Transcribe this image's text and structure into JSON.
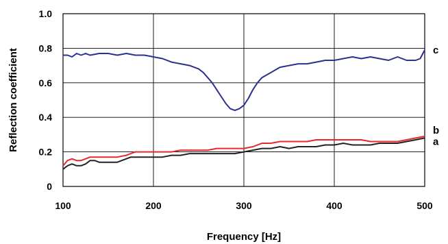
{
  "chart_data": {
    "type": "line",
    "xlabel": "Frequency [Hz]",
    "ylabel": "Reflection coefficient",
    "xlim": [
      100,
      500
    ],
    "ylim": [
      0,
      1.0
    ],
    "x_ticks": [
      100,
      200,
      300,
      400,
      500
    ],
    "x_tick_labels": [
      "100",
      "200",
      "300",
      "400",
      "500"
    ],
    "y_ticks": [
      0,
      0.2,
      0.4,
      0.6,
      0.8,
      1.0
    ],
    "y_tick_labels": [
      "0",
      "0.2",
      "0.4",
      "0.6",
      "0.8",
      "1.0"
    ],
    "grid": true,
    "legend": "labels at right end of lines",
    "series": [
      {
        "name": "a",
        "color": "#222222",
        "x": [
          100,
          105,
          110,
          115,
          120,
          125,
          130,
          135,
          140,
          150,
          160,
          170,
          175,
          180,
          190,
          200,
          210,
          220,
          230,
          240,
          250,
          260,
          270,
          280,
          290,
          300,
          310,
          320,
          330,
          340,
          350,
          360,
          370,
          380,
          390,
          400,
          410,
          420,
          430,
          440,
          450,
          460,
          470,
          480,
          490,
          500
        ],
        "y": [
          0.1,
          0.12,
          0.13,
          0.12,
          0.12,
          0.13,
          0.15,
          0.15,
          0.14,
          0.14,
          0.14,
          0.16,
          0.17,
          0.17,
          0.17,
          0.17,
          0.17,
          0.18,
          0.18,
          0.19,
          0.19,
          0.19,
          0.19,
          0.19,
          0.19,
          0.2,
          0.21,
          0.22,
          0.22,
          0.23,
          0.22,
          0.23,
          0.23,
          0.23,
          0.24,
          0.24,
          0.25,
          0.24,
          0.24,
          0.24,
          0.25,
          0.25,
          0.25,
          0.26,
          0.27,
          0.28
        ]
      },
      {
        "name": "b",
        "color": "#e8282b",
        "x": [
          100,
          105,
          110,
          115,
          120,
          125,
          130,
          135,
          140,
          150,
          160,
          170,
          175,
          180,
          190,
          200,
          210,
          220,
          230,
          240,
          250,
          260,
          270,
          280,
          290,
          300,
          310,
          320,
          330,
          340,
          350,
          360,
          370,
          380,
          390,
          400,
          410,
          420,
          430,
          440,
          450,
          460,
          470,
          480,
          490,
          500
        ],
        "y": [
          0.12,
          0.15,
          0.16,
          0.15,
          0.15,
          0.16,
          0.17,
          0.17,
          0.17,
          0.17,
          0.17,
          0.18,
          0.19,
          0.2,
          0.2,
          0.2,
          0.2,
          0.2,
          0.21,
          0.21,
          0.21,
          0.21,
          0.22,
          0.22,
          0.22,
          0.22,
          0.23,
          0.25,
          0.25,
          0.26,
          0.26,
          0.26,
          0.26,
          0.27,
          0.27,
          0.27,
          0.27,
          0.27,
          0.27,
          0.26,
          0.26,
          0.26,
          0.26,
          0.27,
          0.28,
          0.29
        ]
      },
      {
        "name": "c",
        "color": "#2b2f8f",
        "x": [
          100,
          105,
          110,
          115,
          120,
          125,
          130,
          140,
          150,
          160,
          170,
          180,
          190,
          200,
          210,
          220,
          230,
          240,
          250,
          255,
          260,
          265,
          270,
          275,
          280,
          285,
          290,
          295,
          300,
          305,
          310,
          315,
          320,
          330,
          340,
          350,
          360,
          370,
          380,
          390,
          400,
          410,
          420,
          430,
          440,
          450,
          460,
          470,
          480,
          490,
          495,
          500
        ],
        "y": [
          0.76,
          0.76,
          0.75,
          0.77,
          0.76,
          0.77,
          0.76,
          0.77,
          0.77,
          0.76,
          0.77,
          0.76,
          0.76,
          0.75,
          0.74,
          0.72,
          0.71,
          0.7,
          0.68,
          0.66,
          0.63,
          0.6,
          0.56,
          0.52,
          0.48,
          0.45,
          0.44,
          0.45,
          0.47,
          0.51,
          0.56,
          0.6,
          0.63,
          0.66,
          0.69,
          0.7,
          0.71,
          0.71,
          0.72,
          0.73,
          0.73,
          0.74,
          0.75,
          0.74,
          0.75,
          0.74,
          0.73,
          0.75,
          0.73,
          0.73,
          0.74,
          0.79
        ]
      }
    ]
  }
}
